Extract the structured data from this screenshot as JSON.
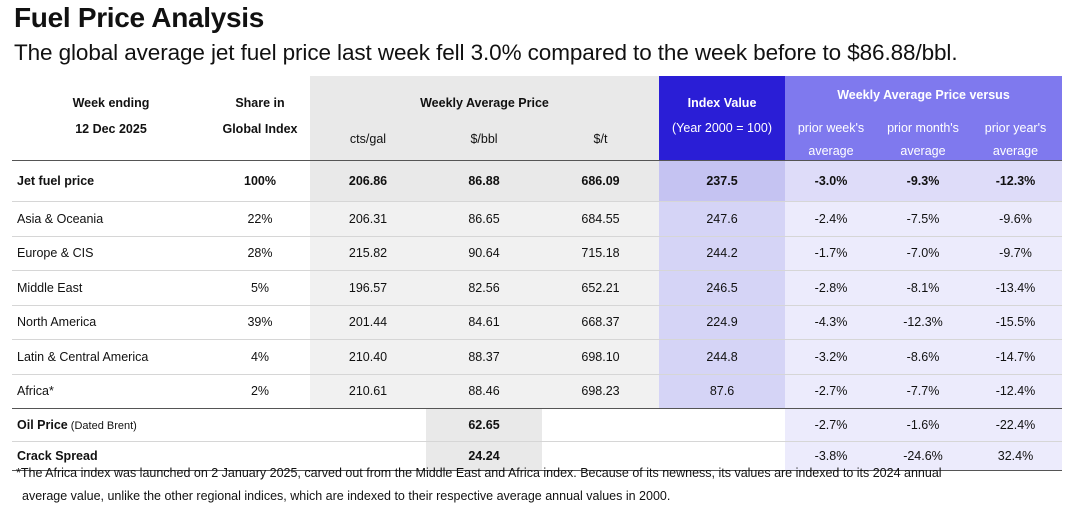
{
  "title": "Fuel Price Analysis",
  "subtitle": "The global average jet fuel price last week fell 3.0% compared to the week before to $86.88/bbl.",
  "header": {
    "week_ending": "Week ending",
    "date": "12 Dec 2025",
    "share_line1": "Share in",
    "share_line2": "Global Index",
    "weekly_avg_price": "Weekly Average Price",
    "cts_gal": "cts/gal",
    "usd_bbl": "$/bbl",
    "usd_t": "$/t",
    "index_value": "Index Value",
    "index_base": "(Year 2000 = 100)",
    "versus": "Weekly Average Price versus",
    "prior_week_1": "prior week's",
    "prior_month_1": "prior month's",
    "prior_year_1": "prior year's",
    "average": "average"
  },
  "jet_fuel": {
    "name": "Jet fuel price",
    "share": "100%",
    "cts_gal": "206.86",
    "usd_bbl": "86.88",
    "usd_t": "686.09",
    "index": "237.5",
    "vs_week": "-3.0%",
    "vs_month": "-9.3%",
    "vs_year": "-12.3%"
  },
  "regions": [
    {
      "name": "Asia & Oceania",
      "share": "22%",
      "cts_gal": "206.31",
      "usd_bbl": "86.65",
      "usd_t": "684.55",
      "index": "247.6",
      "vs_week": "-2.4%",
      "vs_month": "-7.5%",
      "vs_year": "-9.6%"
    },
    {
      "name": "Europe & CIS",
      "share": "28%",
      "cts_gal": "215.82",
      "usd_bbl": "90.64",
      "usd_t": "715.18",
      "index": "244.2",
      "vs_week": "-1.7%",
      "vs_month": "-7.0%",
      "vs_year": "-9.7%"
    },
    {
      "name": "Middle East",
      "share": "5%",
      "cts_gal": "196.57",
      "usd_bbl": "82.56",
      "usd_t": "652.21",
      "index": "246.5",
      "vs_week": "-2.8%",
      "vs_month": "-8.1%",
      "vs_year": "-13.4%"
    },
    {
      "name": "North America",
      "share": "39%",
      "cts_gal": "201.44",
      "usd_bbl": "84.61",
      "usd_t": "668.37",
      "index": "224.9",
      "vs_week": "-4.3%",
      "vs_month": "-12.3%",
      "vs_year": "-15.5%"
    },
    {
      "name": "Latin & Central America",
      "share": "4%",
      "cts_gal": "210.40",
      "usd_bbl": "88.37",
      "usd_t": "698.10",
      "index": "244.8",
      "vs_week": "-3.2%",
      "vs_month": "-8.6%",
      "vs_year": "-14.7%"
    },
    {
      "name": "Africa*",
      "share": "2%",
      "cts_gal": "210.61",
      "usd_bbl": "88.46",
      "usd_t": "698.23",
      "index": "87.6",
      "vs_week": "-2.7%",
      "vs_month": "-7.7%",
      "vs_year": "-12.4%"
    }
  ],
  "oil": {
    "name_bold": "Oil Price",
    "name_rest": " (Dated Brent)",
    "usd_bbl": "62.65",
    "vs_week": "-2.7%",
    "vs_month": "-1.6%",
    "vs_year": "-22.4%"
  },
  "crack": {
    "name": "Crack Spread",
    "usd_bbl": "24.24",
    "vs_week": "-3.8%",
    "vs_month": "-24.6%",
    "vs_year": "32.4%"
  },
  "footnote_line1": "*The Africa index was launched on 2 January 2025, carved out from the Middle East and Africa index. Because of its newness, its values are indexed  to its 2024 annual",
  "footnote_line2": "average value, unlike the other regional indices, which are indexed to their respective average annual values in 2000."
}
